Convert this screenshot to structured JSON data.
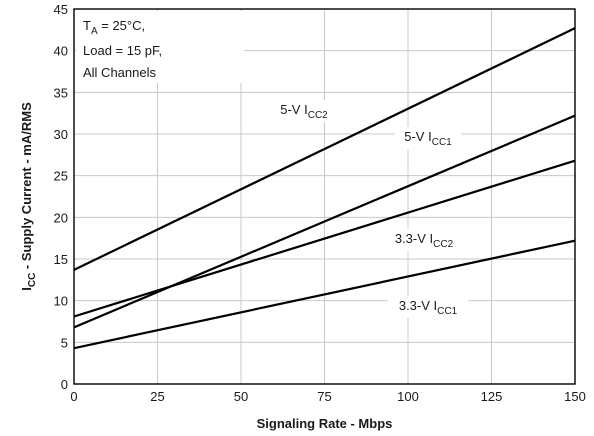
{
  "chart_data": {
    "type": "line",
    "xlabel": "Signaling Rate - Mbps",
    "ylabel": {
      "main": "I",
      "sub": "CC",
      "rest": " - Supply Current - mA/RMS"
    },
    "xlim": [
      0,
      150
    ],
    "ylim": [
      0,
      45
    ],
    "x_ticks": [
      0,
      25,
      50,
      75,
      100,
      125,
      150
    ],
    "y_ticks": [
      0,
      5,
      10,
      15,
      20,
      25,
      30,
      35,
      40,
      45
    ],
    "grid": true,
    "conditions": {
      "line1": {
        "main": "T",
        "sub": "A",
        "rest": " = 25°C,"
      },
      "line2": "Load = 15 pF,",
      "line3": "All Channels"
    },
    "series": [
      {
        "name": "5-V ICC2",
        "label": {
          "main": "5-V I",
          "sub": "CC2"
        },
        "x": [
          0,
          150
        ],
        "y": [
          13.7,
          42.7
        ]
      },
      {
        "name": "5-V ICC1",
        "label": {
          "main": "5-V I",
          "sub": "CC1"
        },
        "x": [
          0,
          150
        ],
        "y": [
          6.8,
          32.2
        ]
      },
      {
        "name": "3.3-V ICC2",
        "label": {
          "main": "3.3-V I",
          "sub": "CC2"
        },
        "x": [
          0,
          150
        ],
        "y": [
          8.1,
          26.8
        ]
      },
      {
        "name": "3.3-V ICC1",
        "label": {
          "main": "3.3-V I",
          "sub": "CC1"
        },
        "x": [
          0,
          150
        ],
        "y": [
          4.3,
          17.2
        ]
      }
    ]
  }
}
